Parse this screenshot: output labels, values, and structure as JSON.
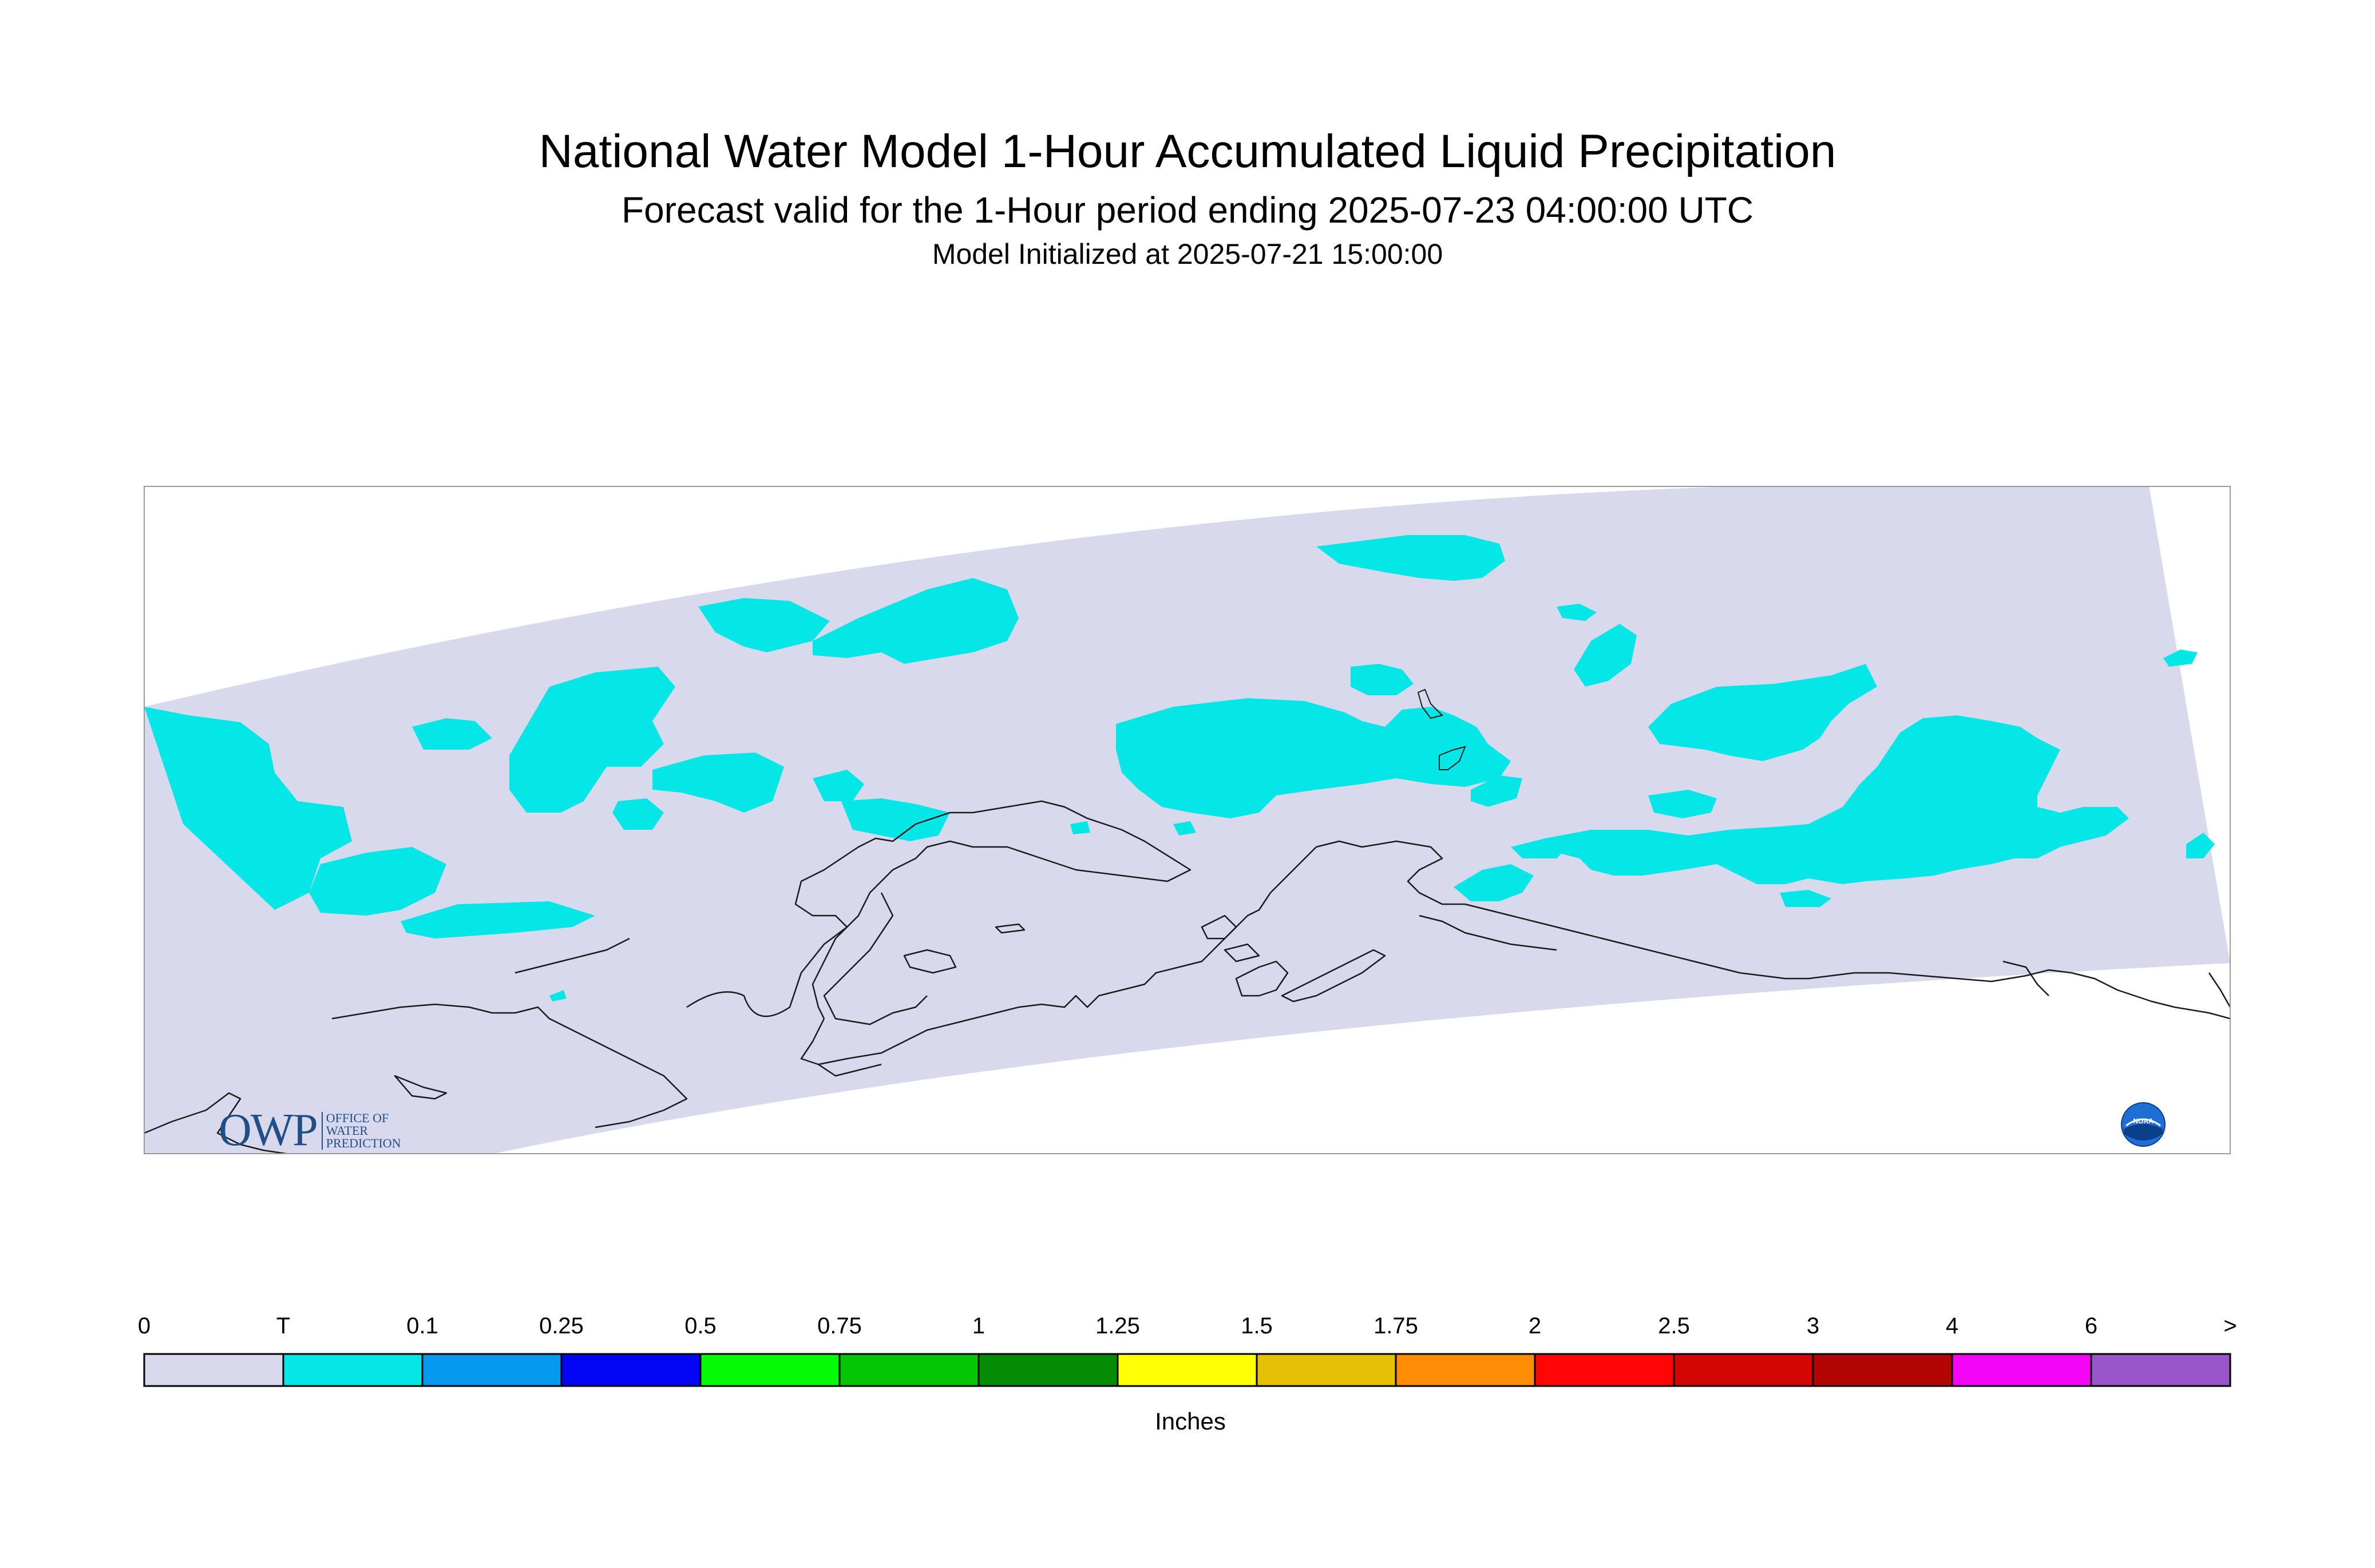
{
  "titles": {
    "main": "National Water Model 1-Hour Accumulated Liquid Precipitation",
    "sub": "Forecast valid for the 1-Hour period ending 2025-07-23 04:00:00 UTC",
    "init": "Model Initialized at 2025-07-21 15:00:00"
  },
  "legend": {
    "units": "Inches",
    "labels": [
      "0",
      "T",
      "0.1",
      "0.25",
      "0.5",
      "0.75",
      "1",
      "1.25",
      "1.5",
      "1.75",
      "2",
      "2.5",
      "3",
      "4",
      "6",
      ">"
    ],
    "colors": [
      "#d9d9ed",
      "#05e6e6",
      "#0599f0",
      "#0505f5",
      "#05fa05",
      "#05c605",
      "#058c05",
      "#ffff05",
      "#e6c005",
      "#ff8c05",
      "#ff0505",
      "#d40505",
      "#b40505",
      "#f505f5",
      "#9955c9"
    ]
  },
  "map": {
    "domain_fill": "#d9d9ed",
    "precip_fill": "#05e6e6",
    "precip_category": "T (trace)",
    "coast_color": "#000000"
  },
  "logos": {
    "owp_mark": "OWP",
    "owp_text": [
      "OFFICE OF",
      "WATER",
      "PREDICTION"
    ],
    "noaa_text": "NOAA"
  }
}
